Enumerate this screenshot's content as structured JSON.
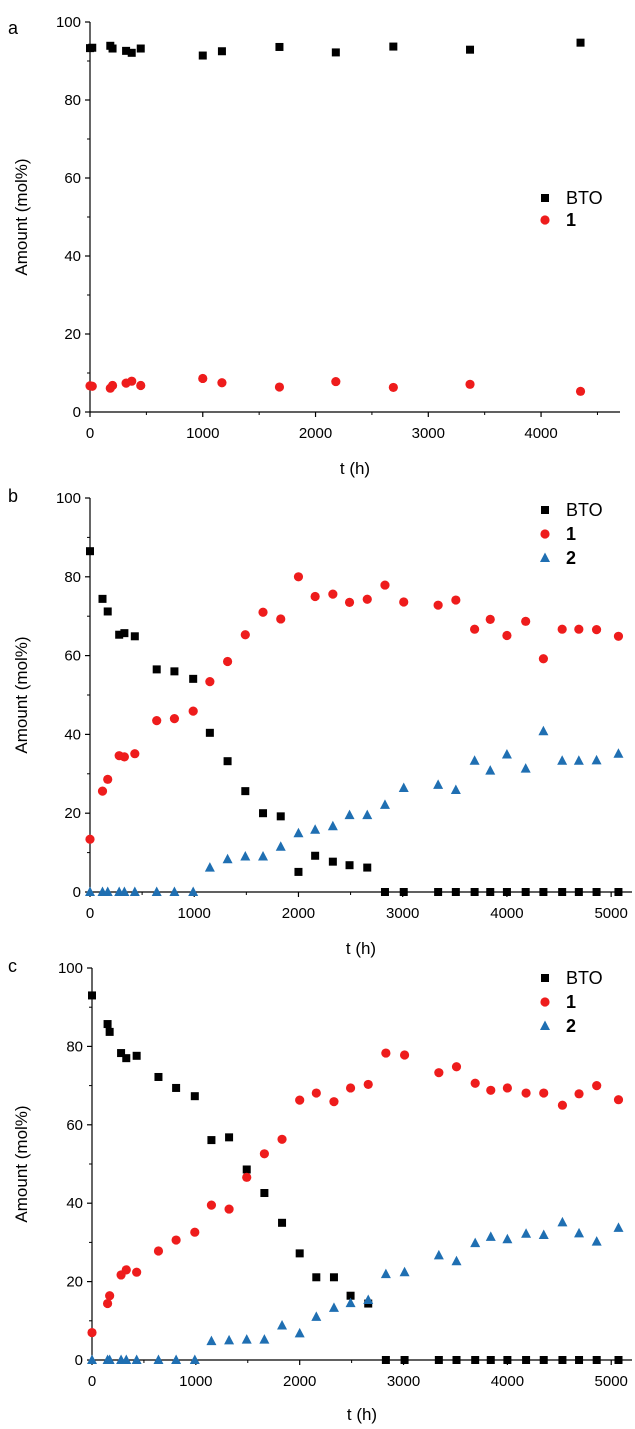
{
  "colors": {
    "BTO": "#000000",
    "1": "#ee1c1c",
    "2": "#1f6fb2",
    "axis": "#000000"
  },
  "chart_data": [
    {
      "type": "scatter",
      "panel": "a",
      "xlabel": "t (h)",
      "ylabel": "Amount (mol%)",
      "xlim": [
        0,
        4700
      ],
      "ylim": [
        0,
        100
      ],
      "xticks": [
        "0",
        "1000",
        "2000",
        "3000",
        "4000"
      ],
      "yticks": [
        "0",
        "20",
        "40",
        "60",
        "80",
        "100"
      ],
      "legend_position": "right-middle",
      "series": [
        {
          "name": "BTO",
          "marker": "square",
          "points": [
            [
              0,
              93.3
            ],
            [
              20,
              93.4
            ],
            [
              180,
              93.9
            ],
            [
              200,
              93.2
            ],
            [
              320,
              92.6
            ],
            [
              370,
              92.1
            ],
            [
              450,
              93.2
            ],
            [
              1000,
              91.4
            ],
            [
              1170,
              92.5
            ],
            [
              1680,
              93.6
            ],
            [
              2180,
              92.2
            ],
            [
              2690,
              93.7
            ],
            [
              3370,
              92.9
            ],
            [
              4350,
              94.7
            ]
          ]
        },
        {
          "name": "1",
          "marker": "circle",
          "points": [
            [
              0,
              6.7
            ],
            [
              20,
              6.6
            ],
            [
              180,
              6.1
            ],
            [
              200,
              6.8
            ],
            [
              320,
              7.4
            ],
            [
              370,
              7.9
            ],
            [
              450,
              6.8
            ],
            [
              1000,
              8.6
            ],
            [
              1170,
              7.5
            ],
            [
              1680,
              6.4
            ],
            [
              2180,
              7.8
            ],
            [
              2690,
              6.3
            ],
            [
              3370,
              7.1
            ],
            [
              4350,
              5.3
            ]
          ]
        }
      ]
    },
    {
      "type": "scatter",
      "panel": "b",
      "xlabel": "t (h)",
      "ylabel": "Amount (mol%)",
      "xlim": [
        0,
        5200
      ],
      "ylim": [
        0,
        100
      ],
      "xticks": [
        "0",
        "1000",
        "2000",
        "3000",
        "4000",
        "5000"
      ],
      "yticks": [
        "0",
        "20",
        "40",
        "60",
        "80",
        "100"
      ],
      "legend_position": "top-right",
      "series": [
        {
          "name": "BTO",
          "marker": "square",
          "points": [
            [
              0,
              86.5
            ],
            [
              120,
              74.4
            ],
            [
              170,
              71.2
            ],
            [
              280,
              65.3
            ],
            [
              330,
              65.7
            ],
            [
              430,
              64.9
            ],
            [
              640,
              56.5
            ],
            [
              810,
              56
            ],
            [
              990,
              54.1
            ],
            [
              1150,
              40.4
            ],
            [
              1320,
              33.2
            ],
            [
              1490,
              25.6
            ],
            [
              1660,
              20
            ],
            [
              1830,
              19.2
            ],
            [
              2000,
              5.1
            ],
            [
              2160,
              9.2
            ],
            [
              2330,
              7.7
            ],
            [
              2490,
              6.8
            ],
            [
              2660,
              6.2
            ],
            [
              2830,
              0
            ],
            [
              3010,
              0
            ],
            [
              3340,
              0
            ],
            [
              3510,
              0
            ],
            [
              3690,
              0
            ],
            [
              3840,
              0
            ],
            [
              4000,
              0
            ],
            [
              4180,
              0
            ],
            [
              4350,
              0
            ],
            [
              4530,
              0
            ],
            [
              4690,
              0
            ],
            [
              4860,
              0
            ],
            [
              5070,
              0
            ]
          ]
        },
        {
          "name": "1",
          "marker": "circle",
          "points": [
            [
              0,
              13.4
            ],
            [
              120,
              25.6
            ],
            [
              170,
              28.6
            ],
            [
              280,
              34.6
            ],
            [
              330,
              34.3
            ],
            [
              430,
              35.1
            ],
            [
              640,
              43.5
            ],
            [
              810,
              44
            ],
            [
              990,
              45.9
            ],
            [
              1150,
              53.4
            ],
            [
              1320,
              58.5
            ],
            [
              1490,
              65.3
            ],
            [
              1660,
              71
            ],
            [
              1830,
              69.3
            ],
            [
              2000,
              80
            ],
            [
              2160,
              75
            ],
            [
              2330,
              75.6
            ],
            [
              2490,
              73.5
            ],
            [
              2660,
              74.3
            ],
            [
              2830,
              77.9
            ],
            [
              3010,
              73.6
            ],
            [
              3340,
              72.8
            ],
            [
              3510,
              74.1
            ],
            [
              3690,
              66.7
            ],
            [
              3840,
              69.2
            ],
            [
              4000,
              65.1
            ],
            [
              4180,
              68.7
            ],
            [
              4350,
              59.2
            ],
            [
              4530,
              66.7
            ],
            [
              4690,
              66.7
            ],
            [
              4860,
              66.6
            ],
            [
              5070,
              64.9
            ]
          ]
        },
        {
          "name": "2",
          "marker": "triangle",
          "points": [
            [
              0,
              0
            ],
            [
              120,
              0
            ],
            [
              170,
              0
            ],
            [
              280,
              0
            ],
            [
              330,
              0
            ],
            [
              430,
              0
            ],
            [
              640,
              0
            ],
            [
              810,
              0
            ],
            [
              990,
              0
            ],
            [
              1150,
              6.2
            ],
            [
              1320,
              8.3
            ],
            [
              1490,
              9
            ],
            [
              1660,
              9
            ],
            [
              1830,
              11.5
            ],
            [
              2000,
              14.9
            ],
            [
              2160,
              15.8
            ],
            [
              2330,
              16.7
            ],
            [
              2490,
              19.5
            ],
            [
              2660,
              19.5
            ],
            [
              2830,
              22.1
            ],
            [
              3010,
              26.4
            ],
            [
              3340,
              27.2
            ],
            [
              3510,
              25.9
            ],
            [
              3690,
              33.3
            ],
            [
              3840,
              30.8
            ],
            [
              4000,
              34.9
            ],
            [
              4180,
              31.3
            ],
            [
              4350,
              40.8
            ],
            [
              4530,
              33.3
            ],
            [
              4690,
              33.3
            ],
            [
              4860,
              33.4
            ],
            [
              5070,
              35.1
            ]
          ]
        }
      ]
    },
    {
      "type": "scatter",
      "panel": "c",
      "xlabel": "t (h)",
      "ylabel": "Amount (mol%)",
      "xlim": [
        0,
        5200
      ],
      "ylim": [
        0,
        100
      ],
      "xticks": [
        "0",
        "1000",
        "2000",
        "3000",
        "4000",
        "5000"
      ],
      "yticks": [
        "0",
        "20",
        "40",
        "60",
        "80",
        "100"
      ],
      "legend_position": "top-right",
      "series": [
        {
          "name": "BTO",
          "marker": "square",
          "points": [
            [
              0,
              93
            ],
            [
              150,
              85.7
            ],
            [
              170,
              83.7
            ],
            [
              280,
              78.3
            ],
            [
              330,
              77
            ],
            [
              430,
              77.6
            ],
            [
              640,
              72.2
            ],
            [
              810,
              69.4
            ],
            [
              990,
              67.3
            ],
            [
              1150,
              56.1
            ],
            [
              1320,
              56.8
            ],
            [
              1490,
              48.6
            ],
            [
              1660,
              42.6
            ],
            [
              1830,
              35
            ],
            [
              2000,
              27.2
            ],
            [
              2160,
              21.1
            ],
            [
              2330,
              21.1
            ],
            [
              2490,
              16.4
            ],
            [
              2660,
              14.4
            ],
            [
              2830,
              0
            ],
            [
              3010,
              0
            ],
            [
              3340,
              0
            ],
            [
              3510,
              0
            ],
            [
              3690,
              0
            ],
            [
              3840,
              0
            ],
            [
              4000,
              0
            ],
            [
              4180,
              0
            ],
            [
              4350,
              0
            ],
            [
              4530,
              0
            ],
            [
              4690,
              0
            ],
            [
              4860,
              0
            ],
            [
              5070,
              0
            ]
          ]
        },
        {
          "name": "1",
          "marker": "circle",
          "points": [
            [
              0,
              7
            ],
            [
              150,
              14.4
            ],
            [
              170,
              16.4
            ],
            [
              280,
              21.7
            ],
            [
              330,
              23
            ],
            [
              430,
              22.4
            ],
            [
              640,
              27.8
            ],
            [
              810,
              30.6
            ],
            [
              990,
              32.6
            ],
            [
              1150,
              39.5
            ],
            [
              1320,
              38.5
            ],
            [
              1490,
              46.6
            ],
            [
              1660,
              52.6
            ],
            [
              1830,
              56.3
            ],
            [
              2000,
              66.3
            ],
            [
              2160,
              68.1
            ],
            [
              2330,
              65.9
            ],
            [
              2490,
              69.4
            ],
            [
              2660,
              70.3
            ],
            [
              2830,
              78.3
            ],
            [
              3010,
              77.8
            ],
            [
              3340,
              73.3
            ],
            [
              3510,
              74.8
            ],
            [
              3690,
              70.6
            ],
            [
              3840,
              68.8
            ],
            [
              4000,
              69.4
            ],
            [
              4180,
              68.1
            ],
            [
              4350,
              68.1
            ],
            [
              4530,
              65
            ],
            [
              4690,
              67.9
            ],
            [
              4860,
              70
            ],
            [
              5070,
              66.4
            ]
          ]
        },
        {
          "name": "2",
          "marker": "triangle",
          "points": [
            [
              0,
              0
            ],
            [
              150,
              0
            ],
            [
              170,
              0
            ],
            [
              280,
              0
            ],
            [
              330,
              0
            ],
            [
              430,
              0
            ],
            [
              640,
              0
            ],
            [
              810,
              0
            ],
            [
              990,
              0
            ],
            [
              1150,
              4.8
            ],
            [
              1320,
              5
            ],
            [
              1490,
              5.2
            ],
            [
              1660,
              5.2
            ],
            [
              1830,
              8.8
            ],
            [
              2000,
              6.8
            ],
            [
              2160,
              11
            ],
            [
              2330,
              13.3
            ],
            [
              2490,
              14.5
            ],
            [
              2660,
              15.3
            ],
            [
              2830,
              21.9
            ],
            [
              3010,
              22.4
            ],
            [
              3340,
              26.7
            ],
            [
              3510,
              25.2
            ],
            [
              3690,
              29.8
            ],
            [
              3840,
              31.4
            ],
            [
              4000,
              30.8
            ],
            [
              4180,
              32.2
            ],
            [
              4350,
              31.9
            ],
            [
              4530,
              35.1
            ],
            [
              4690,
              32.3
            ],
            [
              4860,
              30.2
            ],
            [
              5070,
              33.7
            ]
          ]
        }
      ]
    }
  ]
}
